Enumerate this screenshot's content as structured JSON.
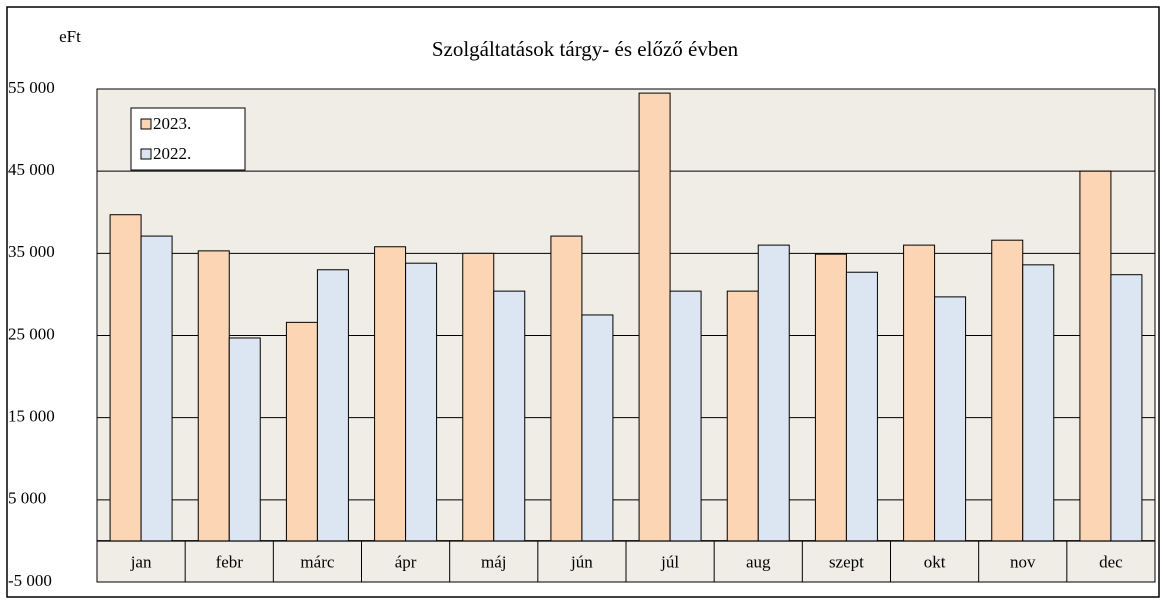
{
  "chart_data": {
    "type": "bar",
    "title": "Szolgáltatások  tárgy-  és előző évben",
    "y_label": "eFt",
    "categories": [
      "jan",
      "febr",
      "márc",
      "ápr",
      "máj",
      "jún",
      "júl",
      "aug",
      "szept",
      "okt",
      "nov",
      "dec"
    ],
    "series": [
      {
        "name": "2023.",
        "color": "#fcd5b5",
        "values": [
          39700,
          35300,
          26600,
          35800,
          35000,
          37100,
          54500,
          30400,
          34900,
          36000,
          36600,
          45000
        ]
      },
      {
        "name": "2022.",
        "color": "#dce6f2",
        "values": [
          37100,
          24700,
          33000,
          33800,
          30400,
          27500,
          30400,
          36000,
          32700,
          29700,
          33600,
          32400
        ]
      }
    ],
    "ylim": [
      -5000,
      55000
    ],
    "yticks": [
      {
        "value": -5000,
        "label": "-5 000"
      },
      {
        "value": 5000,
        "label": "5 000"
      },
      {
        "value": 15000,
        "label": "15 000"
      },
      {
        "value": 25000,
        "label": "25 000"
      },
      {
        "value": 35000,
        "label": "35 000"
      },
      {
        "value": 45000,
        "label": "45 000"
      },
      {
        "value": 55000,
        "label": "55 000"
      }
    ],
    "grid": true,
    "legend": "upper-left"
  }
}
